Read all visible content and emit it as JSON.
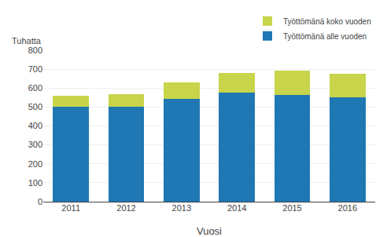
{
  "chart_data": {
    "type": "bar",
    "stacked": true,
    "xlabel": "Vuosi",
    "ylabel": "Tuhatta",
    "categories": [
      "2011",
      "2012",
      "2013",
      "2014",
      "2015",
      "2016"
    ],
    "series": [
      {
        "name": "Työttömänä alle vuoden",
        "color": "#1f77b4",
        "values": [
          500,
          502,
          545,
          575,
          565,
          553
        ]
      },
      {
        "name": "Työttömänä koko vuoden",
        "color": "#c8d44a",
        "values": [
          58,
          65,
          85,
          105,
          128,
          123
        ]
      }
    ],
    "ylim": [
      0,
      800
    ],
    "yticks": [
      0,
      100,
      200,
      300,
      400,
      500,
      600,
      700,
      800
    ],
    "grid": true,
    "legend": "upper right"
  }
}
